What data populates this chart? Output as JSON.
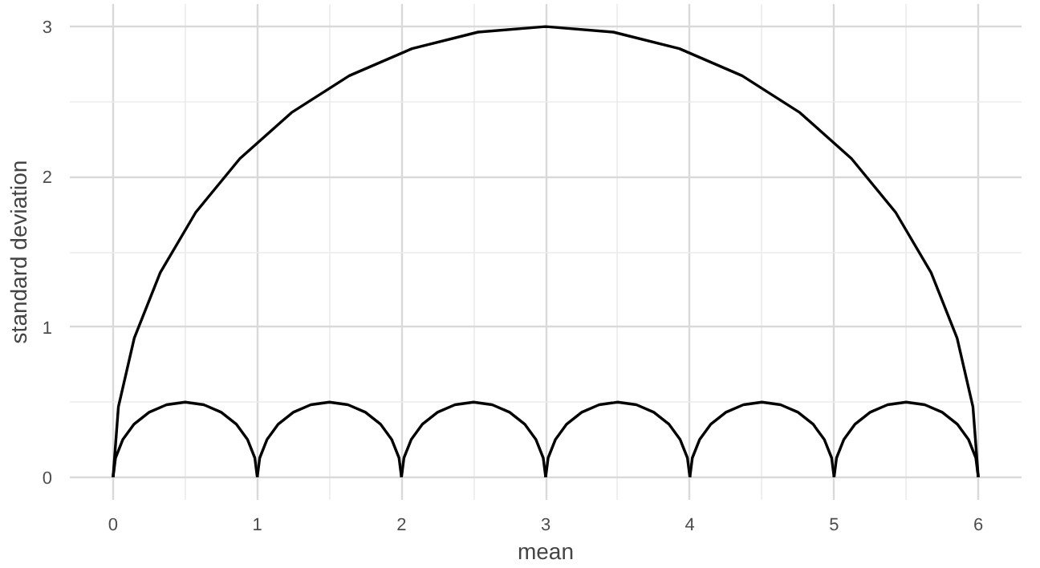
{
  "chart_data": {
    "type": "line",
    "xlabel": "mean",
    "ylabel": "standard deviation",
    "xlim": [
      -0.3,
      6.3
    ],
    "ylim": [
      -0.15,
      3.15
    ],
    "xticks": [
      0,
      1,
      2,
      3,
      4,
      5,
      6
    ],
    "yticks": [
      0,
      1,
      2,
      3
    ],
    "grid": true,
    "marker": "none",
    "line_style": "solid",
    "series": [
      {
        "color": "#000000",
        "x": [
          0,
          0.037,
          0.147,
          0.327,
          0.573,
          0.879,
          1.237,
          1.638,
          2.073,
          2.531,
          3,
          3.469,
          3.927,
          4.362,
          4.763,
          5.121,
          5.427,
          5.673,
          5.853,
          5.963,
          6
        ],
        "values": [
          0,
          0.469,
          0.927,
          1.362,
          1.763,
          2.121,
          2.427,
          2.673,
          2.853,
          2.963,
          3,
          2.963,
          2.853,
          2.673,
          2.427,
          2.121,
          1.763,
          1.362,
          0.927,
          0.469,
          0
        ]
      },
      {
        "color": "#000000",
        "x": [
          0,
          0.017,
          0.067,
          0.146,
          0.25,
          0.371,
          0.5,
          0.629,
          0.75,
          0.854,
          0.933,
          0.983,
          1
        ],
        "values": [
          0,
          0.129,
          0.25,
          0.354,
          0.433,
          0.483,
          0.5,
          0.483,
          0.433,
          0.354,
          0.25,
          0.129,
          0
        ]
      },
      {
        "color": "#000000",
        "x": [
          1,
          1.017,
          1.067,
          1.146,
          1.25,
          1.371,
          1.5,
          1.629,
          1.75,
          1.854,
          1.933,
          1.983,
          2
        ],
        "values": [
          0,
          0.129,
          0.25,
          0.354,
          0.433,
          0.483,
          0.5,
          0.483,
          0.433,
          0.354,
          0.25,
          0.129,
          0
        ]
      },
      {
        "color": "#000000",
        "x": [
          2,
          2.017,
          2.067,
          2.146,
          2.25,
          2.371,
          2.5,
          2.629,
          2.75,
          2.854,
          2.933,
          2.983,
          3
        ],
        "values": [
          0,
          0.129,
          0.25,
          0.354,
          0.433,
          0.483,
          0.5,
          0.483,
          0.433,
          0.354,
          0.25,
          0.129,
          0
        ]
      },
      {
        "color": "#000000",
        "x": [
          3,
          3.017,
          3.067,
          3.146,
          3.25,
          3.371,
          3.5,
          3.629,
          3.75,
          3.854,
          3.933,
          3.983,
          4
        ],
        "values": [
          0,
          0.129,
          0.25,
          0.354,
          0.433,
          0.483,
          0.5,
          0.483,
          0.433,
          0.354,
          0.25,
          0.129,
          0
        ]
      },
      {
        "color": "#000000",
        "x": [
          4,
          4.017,
          4.067,
          4.146,
          4.25,
          4.371,
          4.5,
          4.629,
          4.75,
          4.854,
          4.933,
          4.983,
          5
        ],
        "values": [
          0,
          0.129,
          0.25,
          0.354,
          0.433,
          0.483,
          0.5,
          0.483,
          0.433,
          0.354,
          0.25,
          0.129,
          0
        ]
      },
      {
        "color": "#000000",
        "x": [
          5,
          5.017,
          5.067,
          5.146,
          5.25,
          5.371,
          5.5,
          5.629,
          5.75,
          5.854,
          5.933,
          5.983,
          6
        ],
        "values": [
          0,
          0.129,
          0.25,
          0.354,
          0.433,
          0.483,
          0.5,
          0.483,
          0.433,
          0.354,
          0.25,
          0.129,
          0
        ]
      }
    ]
  }
}
